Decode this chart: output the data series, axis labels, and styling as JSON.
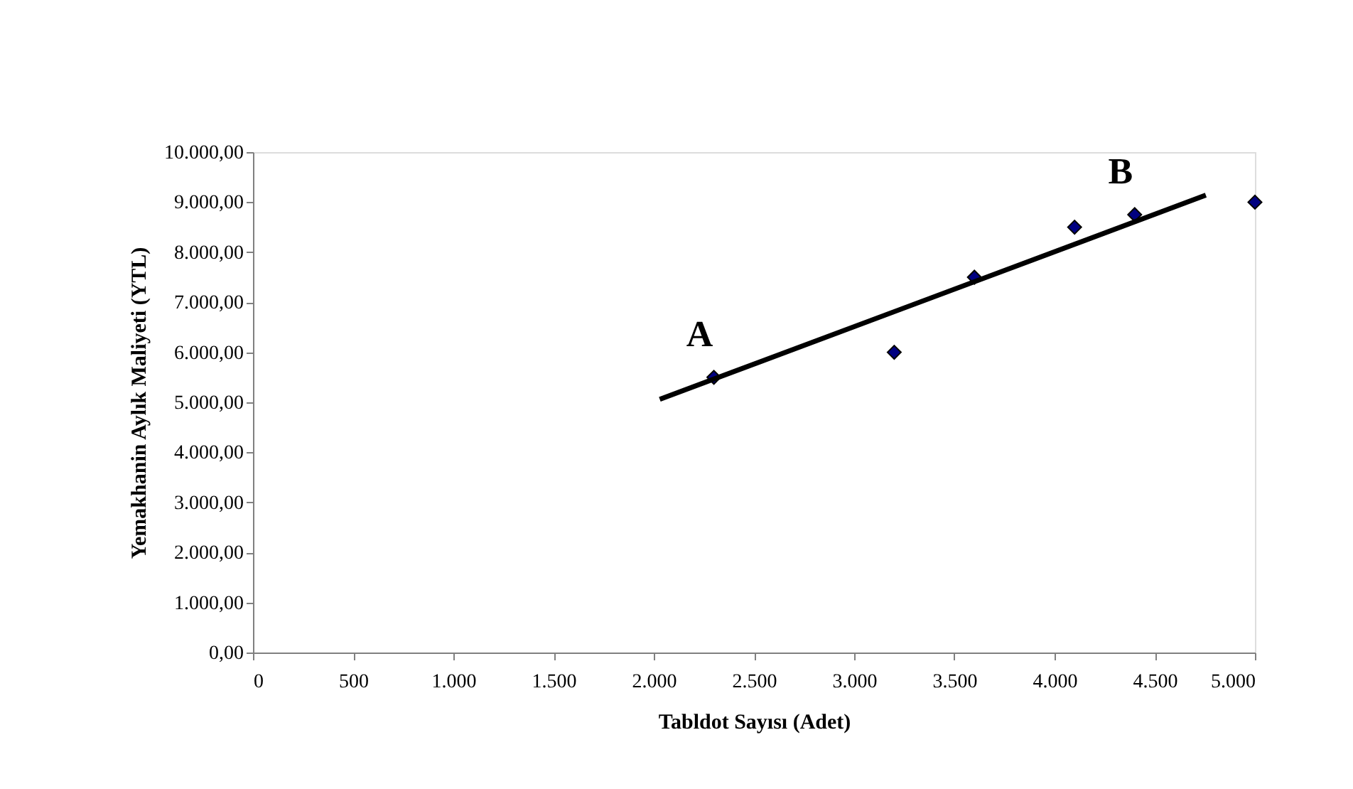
{
  "chart_data": {
    "type": "scatter",
    "xlabel": "Tabldot Sayısı (Adet)",
    "ylabel": "Yemakhanin Aylık Maliyeti (YTL)",
    "series": [
      {
        "color": "#000080",
        "x": [
          2300,
          3200,
          3600,
          4100,
          4400,
          5000
        ],
        "values": [
          5500,
          6000,
          7500,
          8500,
          8750,
          9000
        ],
        "marker": "diamond"
      },
      {
        "type": "line",
        "color": "#000000",
        "x": [
          2030,
          4755
        ],
        "values": [
          5060,
          9140
        ],
        "line_style": "solid"
      }
    ],
    "annotations": [
      {
        "text": "A",
        "x": 2300,
        "y": 5500
      },
      {
        "text": "B",
        "x": 4400,
        "y": 8750
      }
    ],
    "xlim": [
      0,
      5000
    ],
    "ylim": [
      0,
      10000
    ],
    "xticks": [
      0,
      500,
      {
        "value": 1000,
        "label": "1.000"
      },
      {
        "value": 1500,
        "label": "1.500"
      },
      {
        "value": 2000,
        "label": "2.000"
      },
      {
        "value": 2500,
        "label": "2.500"
      },
      {
        "value": 3000,
        "label": "3.000"
      },
      {
        "value": 3500,
        "label": "3.500"
      },
      {
        "value": 4000,
        "label": "4.000"
      },
      {
        "value": 4500,
        "label": "4.500"
      },
      {
        "value": 5000,
        "label": "5.000"
      }
    ],
    "yticks": [
      {
        "value": 0,
        "label": "0,00"
      },
      {
        "value": 1000,
        "label": "1.000,00"
      },
      {
        "value": 2000,
        "label": "2.000,00"
      },
      {
        "value": 3000,
        "label": "3.000,00"
      },
      {
        "value": 4000,
        "label": "4.000,00"
      },
      {
        "value": 5000,
        "label": "5.000,00"
      },
      {
        "value": 6000,
        "label": "6.000,00"
      },
      {
        "value": 7000,
        "label": "7.000,00"
      },
      {
        "value": 8000,
        "label": "8.000,00"
      },
      {
        "value": 9000,
        "label": "9.000,00"
      },
      {
        "value": 10000,
        "label": "10.000,00"
      }
    ],
    "grid": false
  }
}
